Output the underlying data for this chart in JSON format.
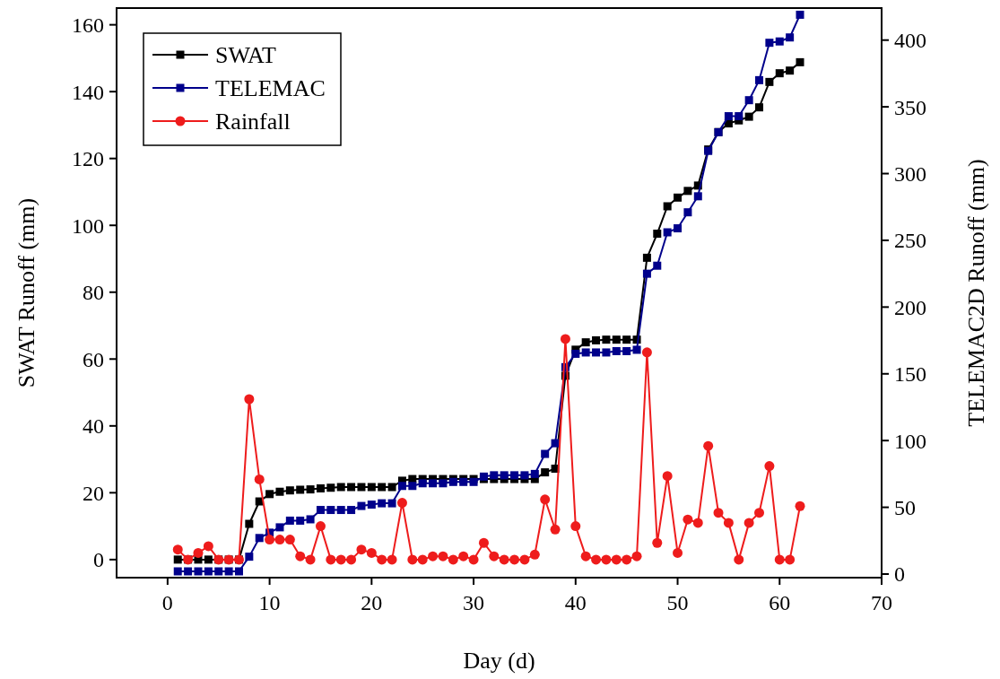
{
  "chart_data": {
    "type": "line",
    "xlabel": "Day (d)",
    "ylabel": "SWAT Runoff (mm)",
    "y2label": "TELEMAC2D Runoff (mm)",
    "x": [
      1,
      2,
      3,
      4,
      5,
      6,
      7,
      8,
      9,
      10,
      11,
      12,
      13,
      14,
      15,
      16,
      17,
      18,
      19,
      20,
      21,
      22,
      23,
      24,
      25,
      26,
      27,
      28,
      29,
      30,
      31,
      32,
      33,
      34,
      35,
      36,
      37,
      38,
      39,
      40,
      41,
      42,
      43,
      44,
      45,
      46,
      47,
      48,
      49,
      50,
      51,
      52,
      53,
      54,
      55,
      56,
      57,
      58,
      59,
      60,
      61,
      62
    ],
    "series": [
      {
        "name": "SWAT",
        "color": "#000000",
        "marker": "square",
        "values": [
          0,
          0,
          0,
          0,
          0,
          0,
          0,
          10.7,
          17.4,
          19.6,
          20.3,
          20.7,
          20.9,
          21,
          21.3,
          21.5,
          21.7,
          21.7,
          21.7,
          21.7,
          21.7,
          21.7,
          23.6,
          24.1,
          24.1,
          24.1,
          24.1,
          24.1,
          24.1,
          24.1,
          24.1,
          24.1,
          24.1,
          24.1,
          24.1,
          24.1,
          26.1,
          27.2,
          55,
          62.8,
          65,
          65.6,
          65.8,
          65.8,
          65.8,
          65.8,
          90.3,
          97.5,
          105.7,
          108.3,
          110.3,
          111.9,
          122.7,
          127.9,
          130.5,
          131.4,
          132.5,
          135.3,
          142.9,
          145.5,
          146.3,
          148.8
        ]
      },
      {
        "name": "TELEMAC",
        "color": "#00008b",
        "marker": "square",
        "axis": "y2",
        "values": [
          2,
          2,
          2,
          2,
          2,
          2,
          2,
          13,
          27,
          31,
          35,
          40,
          40,
          41,
          48,
          48,
          48,
          48,
          51,
          52,
          53,
          53,
          66,
          66,
          68,
          68,
          68,
          69,
          69,
          69,
          73,
          74,
          74,
          74,
          74,
          75,
          90,
          98,
          155,
          165,
          166,
          166,
          166,
          167,
          167,
          168,
          225,
          231,
          256,
          259,
          271,
          283,
          317,
          331,
          343,
          343,
          355,
          370,
          398,
          399,
          402,
          419
        ]
      },
      {
        "name": "Rainfall",
        "color": "#ee1c1c",
        "marker": "circle",
        "values": [
          3,
          0,
          2,
          4,
          0,
          0,
          0,
          48,
          24,
          6,
          6,
          6,
          1,
          0,
          10,
          0,
          0,
          0,
          3,
          2,
          0,
          0,
          17,
          0,
          0,
          1,
          1,
          0,
          1,
          0,
          5,
          1,
          0,
          0,
          0,
          1.5,
          18,
          9,
          66,
          10,
          1,
          0,
          0,
          0,
          0,
          1,
          62,
          5,
          25,
          2,
          12,
          11,
          34,
          14,
          11,
          0,
          11,
          14,
          28,
          0,
          0,
          16
        ]
      }
    ],
    "xlim": [
      -5,
      70
    ],
    "xticks": [
      0,
      10,
      20,
      30,
      40,
      50,
      60,
      70
    ],
    "ylim": [
      -5.4,
      165
    ],
    "yticks": [
      0,
      20,
      40,
      60,
      80,
      100,
      120,
      140,
      160
    ],
    "y2lim": [
      -2.7,
      424
    ],
    "y2ticks": [
      0,
      50,
      100,
      150,
      200,
      250,
      300,
      350,
      400
    ],
    "grid": false,
    "legend": "top left",
    "line_style": "solid"
  }
}
